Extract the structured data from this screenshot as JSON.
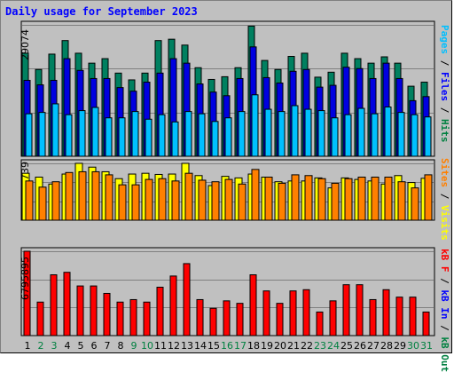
{
  "title": "Daily usage for September 2023",
  "panels": {
    "top_max": "29074",
    "mid_max": "739",
    "bottom_max": "6795895"
  },
  "legends": {
    "top": [
      {
        "text": "Pages",
        "color": "#00bfff"
      },
      {
        "text": " / ",
        "color": "#000000"
      },
      {
        "text": "Files",
        "color": "#0000ff"
      },
      {
        "text": " / ",
        "color": "#000000"
      },
      {
        "text": "Hits",
        "color": "#008040"
      }
    ],
    "mid": [
      {
        "text": "Sites",
        "color": "#ff8000"
      },
      {
        "text": " / ",
        "color": "#000000"
      },
      {
        "text": "Visits",
        "color": "#ffff00"
      }
    ],
    "bottom": [
      {
        "text": "kB F",
        "color": "#ff0000"
      },
      {
        "text": " / ",
        "color": "#000000"
      },
      {
        "text": "kB In",
        "color": "#0000ff"
      },
      {
        "text": " / ",
        "color": "#000000"
      },
      {
        "text": "kB Out",
        "color": "#008040"
      }
    ]
  },
  "colors": {
    "hits": "#008060",
    "files": "#0000e0",
    "pages": "#00c0ff",
    "visits": "#ffff00",
    "sites": "#ff8000",
    "kbytes": "#ff0000",
    "weekday_label": "#000000",
    "weekend_label": "#008040"
  },
  "chart_data": [
    {
      "type": "bar",
      "name": "hits-files-pages",
      "categories": [
        "1",
        "2",
        "3",
        "4",
        "5",
        "6",
        "7",
        "8",
        "9",
        "10",
        "11",
        "12",
        "13",
        "14",
        "15",
        "16",
        "17",
        "18",
        "19",
        "20",
        "21",
        "22",
        "23",
        "24",
        "25",
        "26",
        "27",
        "28",
        "29",
        "30",
        "31"
      ],
      "weekend": [
        false,
        true,
        true,
        false,
        false,
        false,
        false,
        false,
        true,
        true,
        false,
        false,
        false,
        false,
        false,
        true,
        true,
        false,
        false,
        false,
        false,
        false,
        true,
        true,
        false,
        false,
        false,
        false,
        false,
        true,
        true
      ],
      "ylim": [
        0,
        29074
      ],
      "series": [
        {
          "name": "Hits",
          "values": [
            22800,
            19200,
            22600,
            25600,
            22800,
            20600,
            21600,
            18400,
            16900,
            18400,
            25600,
            25900,
            24600,
            19600,
            17000,
            17600,
            19600,
            28800,
            21200,
            19200,
            22100,
            22800,
            17500,
            18600,
            22800,
            21600,
            20600,
            22000,
            20600,
            15500,
            16400
          ]
        },
        {
          "name": "Files",
          "values": [
            16800,
            15800,
            16800,
            21600,
            19000,
            17200,
            17200,
            15200,
            14400,
            16400,
            18400,
            21600,
            20600,
            16000,
            14200,
            13400,
            17200,
            24200,
            17400,
            16200,
            18800,
            19200,
            15300,
            15700,
            19700,
            19400,
            17200,
            20600,
            17200,
            12300,
            13200
          ]
        },
        {
          "name": "Pages",
          "values": [
            9400,
            9700,
            11600,
            9200,
            10100,
            10800,
            8500,
            8500,
            9900,
            8200,
            9200,
            7600,
            9900,
            9400,
            7700,
            8500,
            9900,
            13600,
            10400,
            9900,
            11200,
            10400,
            10100,
            8500,
            9200,
            10600,
            9400,
            10900,
            9700,
            9200,
            8700
          ]
        }
      ]
    },
    {
      "type": "bar",
      "name": "visits-sites",
      "categories": [
        "1",
        "2",
        "3",
        "4",
        "5",
        "6",
        "7",
        "8",
        "9",
        "10",
        "11",
        "12",
        "13",
        "14",
        "15",
        "16",
        "17",
        "18",
        "19",
        "20",
        "21",
        "22",
        "23",
        "24",
        "25",
        "26",
        "27",
        "28",
        "29",
        "30",
        "31"
      ],
      "ylim": [
        0,
        739
      ],
      "series": [
        {
          "name": "Visits",
          "values": [
            610,
            560,
            470,
            600,
            739,
            690,
            630,
            540,
            600,
            610,
            595,
            600,
            739,
            580,
            450,
            570,
            550,
            600,
            560,
            500,
            510,
            510,
            550,
            420,
            550,
            530,
            510,
            470,
            580,
            490,
            545
          ]
        },
        {
          "name": "Sites",
          "values": [
            510,
            430,
            500,
            620,
            630,
            630,
            590,
            460,
            460,
            530,
            540,
            510,
            610,
            520,
            500,
            530,
            470,
            660,
            560,
            480,
            590,
            580,
            540,
            480,
            540,
            560,
            560,
            560,
            500,
            420,
            590
          ]
        }
      ]
    },
    {
      "type": "bar",
      "name": "kbytes",
      "categories": [
        "1",
        "2",
        "3",
        "4",
        "5",
        "6",
        "7",
        "8",
        "9",
        "10",
        "11",
        "12",
        "13",
        "14",
        "15",
        "16",
        "17",
        "18",
        "19",
        "20",
        "21",
        "22",
        "23",
        "24",
        "25",
        "26",
        "27",
        "28",
        "29",
        "30",
        "31"
      ],
      "ylim": [
        0,
        6795895
      ],
      "series": [
        {
          "name": "kB F",
          "values": [
            6795895,
            2700000,
            4900000,
            5100000,
            4000000,
            4000000,
            3400000,
            2700000,
            2900000,
            2700000,
            3900000,
            4800000,
            5800000,
            2900000,
            2200000,
            2800000,
            2600000,
            4900000,
            3600000,
            2600000,
            3600000,
            3700000,
            1900000,
            2800000,
            4100000,
            4100000,
            2900000,
            3700000,
            3100000,
            3100000,
            1900000
          ]
        }
      ]
    }
  ]
}
